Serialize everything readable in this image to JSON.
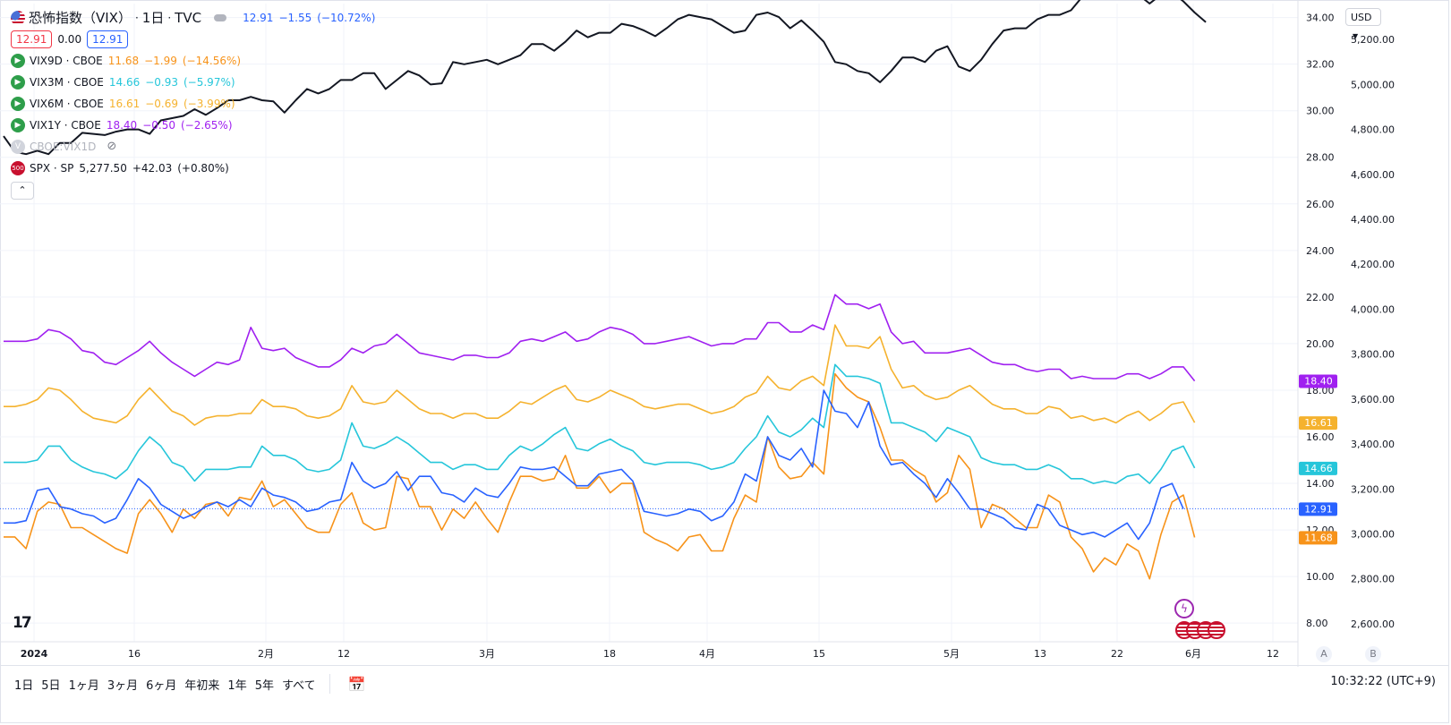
{
  "header": {
    "title": "恐怖指数（VIX）",
    "timeframe": "1日",
    "source": "TVC",
    "last": "12.91",
    "change": "−1.55",
    "change_pct": "(−10.72%)",
    "sell": "12.91",
    "spread": "0.00",
    "buy": "12.91"
  },
  "legend": [
    {
      "icon": "play-icon",
      "symbol": "VIX9D",
      "exchange": "CBOE",
      "value": "11.68",
      "change": "−1.99",
      "pct": "(−14.56%)",
      "color": "#f7931a"
    },
    {
      "icon": "play-icon",
      "symbol": "VIX3M",
      "exchange": "CBOE",
      "value": "14.66",
      "change": "−0.93",
      "pct": "(−5.97%)",
      "color": "#26c6da"
    },
    {
      "icon": "play-icon",
      "symbol": "VIX6M",
      "exchange": "CBOE",
      "value": "16.61",
      "change": "−0.69",
      "pct": "(−3.99%)",
      "color": "#f5b22e"
    },
    {
      "icon": "play-icon",
      "symbol": "VIX1Y",
      "exchange": "CBOE",
      "value": "18.40",
      "change": "−0.50",
      "pct": "(−2.65%)",
      "color": "#a020f0"
    }
  ],
  "hidden_series": {
    "label": "CBOE:VIX1D"
  },
  "spx": {
    "badge": "500",
    "symbol": "SPX",
    "exchange": "SP",
    "value": "5,277.50",
    "change": "+42.03",
    "pct": "(+0.80%)"
  },
  "currency": "USD",
  "bottom_toolbar": {
    "ranges": [
      "1日",
      "5日",
      "1ヶ月",
      "3ヶ月",
      "6ヶ月",
      "年初来",
      "1年",
      "5年",
      "すべて"
    ],
    "clock": "10:32:22 (UTC+9)",
    "axis_btn_a": "A",
    "axis_btn_b": "B"
  },
  "colors": {
    "vix": "#2962ff",
    "vix9d": "#f7931a",
    "vix3m": "#26c6da",
    "vix6m": "#f5b22e",
    "vix1y": "#a020f0",
    "spx": "#131722",
    "spx_hidden": "#787b86",
    "grid": "#f0f3fa",
    "up": "#2962ff",
    "down": "#f23645"
  },
  "chart_data": {
    "type": "line",
    "x_ticks": [
      "2024",
      "16",
      "2月",
      "12",
      "3月",
      "18",
      "4月",
      "15",
      "5月",
      "13",
      "22",
      "6月",
      "12"
    ],
    "left_axis": {
      "ticks": [
        "8.00",
        "10.00",
        "12.00",
        "14.00",
        "16.00",
        "18.00",
        "20.00",
        "22.00",
        "24.00",
        "26.00",
        "28.00",
        "30.00",
        "32.00",
        "34.00"
      ],
      "range": [
        7.2,
        34.6
      ]
    },
    "right_axis": {
      "ticks": [
        "2,600.00",
        "2,800.00",
        "3,000.00",
        "3,200.00",
        "3,400.00",
        "3,600.00",
        "3,800.00",
        "4,000.00",
        "4,200.00",
        "4,400.00",
        "4,600.00",
        "4,800.00",
        "5,000.00",
        "5,200.00"
      ],
      "range": [
        2520,
        5360
      ]
    },
    "price_labels": [
      {
        "text": "18.40",
        "value": 18.4,
        "color": "#a020f0"
      },
      {
        "text": "16.61",
        "value": 16.61,
        "color": "#f5b22e"
      },
      {
        "text": "14.66",
        "value": 14.66,
        "color": "#26c6da"
      },
      {
        "text": "12.91",
        "value": 12.91,
        "color": "#2962ff"
      },
      {
        "text": "11.68",
        "value": 11.68,
        "color": "#f7931a"
      }
    ],
    "series": [
      {
        "name": "恐怖指数（VIX）",
        "key": "vix",
        "axis": "left",
        "values": [
          12.3,
          12.3,
          12.4,
          13.7,
          13.8,
          13.0,
          12.9,
          12.7,
          12.6,
          12.3,
          12.5,
          13.3,
          14.2,
          13.8,
          13.1,
          12.8,
          12.5,
          12.7,
          13.0,
          13.2,
          13.0,
          13.3,
          13.0,
          13.8,
          13.5,
          13.4,
          13.2,
          12.8,
          12.9,
          13.2,
          13.3,
          14.9,
          14.1,
          13.8,
          14.0,
          14.5,
          13.7,
          14.3,
          14.3,
          13.6,
          13.5,
          13.2,
          13.8,
          13.5,
          13.4,
          14.0,
          14.7,
          14.6,
          14.6,
          14.7,
          14.3,
          13.9,
          13.9,
          14.4,
          14.5,
          14.6,
          14.1,
          12.8,
          12.7,
          12.6,
          12.7,
          12.9,
          12.8,
          12.4,
          12.6,
          13.2,
          14.4,
          14.1,
          16.0,
          15.2,
          15.0,
          15.5,
          14.7,
          18.0,
          17.1,
          17.0,
          16.4,
          17.5,
          15.6,
          14.8,
          14.9,
          14.4,
          14.0,
          13.4,
          14.2,
          13.6,
          12.9,
          12.9,
          12.7,
          12.5,
          12.1,
          12.0,
          13.1,
          12.9,
          12.2,
          12.0,
          11.8,
          11.9,
          11.7,
          12.0,
          12.3,
          11.6,
          12.3,
          13.8,
          14.0,
          12.91
        ]
      },
      {
        "name": "VIX9D",
        "key": "vix9d",
        "axis": "left",
        "values": [
          11.7,
          11.7,
          11.2,
          12.8,
          13.2,
          13.1,
          12.1,
          12.1,
          11.8,
          11.5,
          11.2,
          11.0,
          12.7,
          13.3,
          12.7,
          11.9,
          12.9,
          12.5,
          13.1,
          13.2,
          12.6,
          13.4,
          13.3,
          14.1,
          13.0,
          13.3,
          12.7,
          12.1,
          11.9,
          11.9,
          13.1,
          13.6,
          12.3,
          12.0,
          12.1,
          14.3,
          14.2,
          13.0,
          13.0,
          12.0,
          12.9,
          12.5,
          13.2,
          12.5,
          11.9,
          13.2,
          14.3,
          14.3,
          14.1,
          14.2,
          15.2,
          13.8,
          13.8,
          14.3,
          13.6,
          14.0,
          14.0,
          11.9,
          11.6,
          11.4,
          11.1,
          11.7,
          11.8,
          11.1,
          11.1,
          12.5,
          13.5,
          13.2,
          16.0,
          14.7,
          14.2,
          14.3,
          14.9,
          14.4,
          18.7,
          18.1,
          17.7,
          17.5,
          16.4,
          15.0,
          15.0,
          14.6,
          14.3,
          13.2,
          13.6,
          15.2,
          14.6,
          12.1,
          13.1,
          12.9,
          12.5,
          12.1,
          12.1,
          13.5,
          13.2,
          11.7,
          11.2,
          10.2,
          10.8,
          10.5,
          11.4,
          11.1,
          9.9,
          11.8,
          13.2,
          13.5,
          11.68
        ]
      },
      {
        "name": "VIX3M",
        "key": "vix3m",
        "axis": "left",
        "values": [
          14.9,
          14.9,
          14.9,
          15.0,
          15.6,
          15.6,
          15.0,
          14.7,
          14.5,
          14.4,
          14.2,
          14.6,
          15.4,
          16.0,
          15.6,
          14.9,
          14.7,
          14.1,
          14.6,
          14.6,
          14.6,
          14.7,
          14.7,
          15.6,
          15.2,
          15.2,
          15.0,
          14.6,
          14.5,
          14.6,
          15.0,
          16.6,
          15.6,
          15.5,
          15.7,
          16.0,
          15.7,
          15.3,
          14.9,
          14.9,
          14.6,
          14.8,
          14.8,
          14.6,
          14.6,
          15.2,
          15.6,
          15.4,
          15.7,
          16.1,
          16.4,
          15.5,
          15.4,
          15.7,
          15.9,
          15.6,
          15.4,
          14.9,
          14.8,
          14.9,
          14.9,
          14.9,
          14.8,
          14.6,
          14.7,
          14.9,
          15.5,
          16.0,
          16.9,
          16.2,
          16.0,
          16.3,
          16.8,
          16.4,
          19.1,
          18.6,
          18.6,
          18.5,
          18.3,
          16.6,
          16.6,
          16.4,
          16.2,
          15.8,
          16.4,
          16.2,
          16.0,
          15.1,
          14.9,
          14.8,
          14.8,
          14.6,
          14.6,
          14.8,
          14.6,
          14.2,
          14.2,
          14.0,
          14.1,
          14.0,
          14.3,
          14.4,
          14.0,
          14.6,
          15.4,
          15.6,
          14.66
        ]
      },
      {
        "name": "VIX6M",
        "key": "vix6m",
        "axis": "left",
        "values": [
          17.3,
          17.3,
          17.4,
          17.6,
          18.1,
          18.0,
          17.6,
          17.1,
          16.8,
          16.7,
          16.6,
          16.9,
          17.6,
          18.1,
          17.6,
          17.1,
          16.9,
          16.5,
          16.8,
          16.9,
          16.9,
          17.0,
          17.0,
          17.6,
          17.3,
          17.3,
          17.2,
          16.9,
          16.8,
          16.9,
          17.2,
          18.2,
          17.5,
          17.4,
          17.5,
          18.0,
          17.6,
          17.2,
          17.0,
          17.0,
          16.8,
          17.0,
          17.0,
          16.8,
          16.8,
          17.1,
          17.5,
          17.4,
          17.7,
          18.0,
          18.2,
          17.6,
          17.5,
          17.7,
          18.0,
          17.8,
          17.6,
          17.3,
          17.2,
          17.3,
          17.4,
          17.4,
          17.2,
          17.0,
          17.1,
          17.3,
          17.7,
          17.9,
          18.6,
          18.1,
          18.0,
          18.4,
          18.6,
          18.2,
          20.8,
          19.9,
          19.9,
          19.8,
          20.3,
          18.9,
          18.1,
          18.2,
          17.8,
          17.6,
          17.7,
          18.0,
          18.2,
          17.8,
          17.4,
          17.2,
          17.2,
          17.0,
          17.0,
          17.3,
          17.2,
          16.8,
          16.9,
          16.7,
          16.8,
          16.6,
          16.9,
          17.1,
          16.7,
          17.0,
          17.4,
          17.5,
          16.61
        ]
      },
      {
        "name": "VIX1Y",
        "key": "vix1y",
        "axis": "left",
        "values": [
          20.1,
          20.1,
          20.1,
          20.2,
          20.6,
          20.5,
          20.2,
          19.7,
          19.6,
          19.2,
          19.1,
          19.4,
          19.7,
          20.1,
          19.6,
          19.2,
          18.9,
          18.6,
          18.9,
          19.2,
          19.1,
          19.3,
          20.7,
          19.8,
          19.7,
          19.8,
          19.4,
          19.2,
          19.0,
          19.0,
          19.3,
          19.8,
          19.6,
          19.9,
          20.0,
          20.4,
          20.0,
          19.6,
          19.5,
          19.4,
          19.3,
          19.5,
          19.5,
          19.4,
          19.4,
          19.6,
          20.1,
          20.2,
          20.1,
          20.3,
          20.5,
          20.1,
          20.2,
          20.5,
          20.7,
          20.6,
          20.4,
          20.0,
          20.0,
          20.1,
          20.2,
          20.3,
          20.1,
          19.9,
          20.0,
          20.0,
          20.2,
          20.2,
          20.9,
          20.9,
          20.5,
          20.5,
          20.8,
          20.6,
          22.1,
          21.7,
          21.7,
          21.5,
          21.7,
          20.5,
          20.0,
          20.1,
          19.6,
          19.6,
          19.6,
          19.7,
          19.8,
          19.5,
          19.2,
          19.1,
          19.1,
          18.9,
          18.8,
          18.9,
          18.9,
          18.5,
          18.6,
          18.5,
          18.5,
          18.5,
          18.7,
          18.7,
          18.5,
          18.7,
          19.0,
          19.0,
          18.4
        ]
      },
      {
        "name": "SPX",
        "key": "spx",
        "axis": "right",
        "values": [
          4770,
          4700,
          4690,
          4705,
          4690,
          4740,
          4740,
          4785,
          4780,
          4775,
          4790,
          4800,
          4800,
          4780,
          4840,
          4850,
          4860,
          4890,
          4865,
          4895,
          4930,
          4930,
          4945,
          4930,
          4925,
          4875,
          4930,
          4980,
          4960,
          4980,
          5020,
          5020,
          5050,
          5050,
          4980,
          5020,
          5060,
          5040,
          5000,
          5005,
          5100,
          5090,
          5100,
          5110,
          5090,
          5110,
          5130,
          5180,
          5180,
          5150,
          5190,
          5240,
          5210,
          5230,
          5230,
          5270,
          5260,
          5240,
          5215,
          5250,
          5290,
          5310,
          5300,
          5290,
          5260,
          5230,
          5240,
          5310,
          5320,
          5300,
          5250,
          5285,
          5240,
          5190,
          5100,
          5090,
          5060,
          5050,
          5010,
          5060,
          5120,
          5120,
          5100,
          5150,
          5170,
          5080,
          5060,
          5110,
          5180,
          5240,
          5250,
          5250,
          5290,
          5310,
          5310,
          5330,
          5390,
          5385,
          5400,
          5410,
          5420,
          5400,
          5360,
          5400,
          5410,
          5370,
          5320,
          5277.5
        ]
      }
    ]
  }
}
